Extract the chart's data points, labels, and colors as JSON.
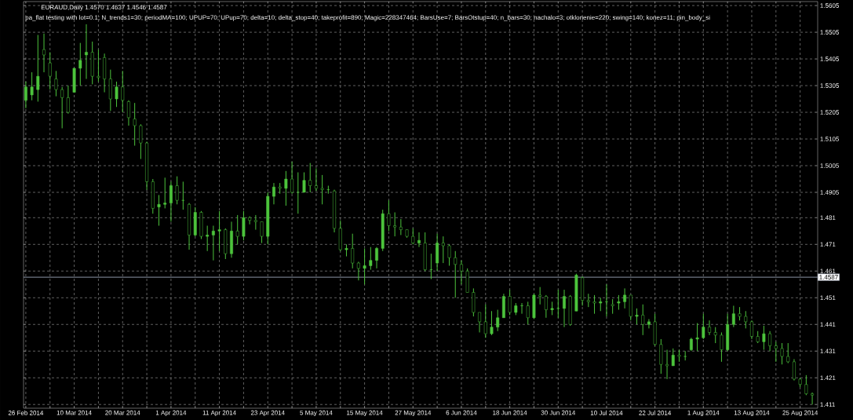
{
  "chart_data": {
    "type": "candlestick",
    "title": "EURAUD,Daily  1.4570 1.4637 1.4546 1.4587",
    "subtitle": "pa_flat testing with lot=0.1; N_trends1=30; periodMA=100; UPUP=70; UPup=70; delta=10; delta_stop=40; takeprofit=890; Magic=228347464; BarsUse=7; BarsOtstup=40; n_bars=30; nachalo=3; otklonenie=220; swing=140; konez=11; pin_body_si",
    "categories": [
      "26 Feb 2014",
      null,
      null,
      null,
      null,
      null,
      null,
      null,
      "10 Mar 2014",
      null,
      null,
      null,
      null,
      null,
      null,
      null,
      "20 Mar 2014",
      null,
      null,
      null,
      null,
      null,
      null,
      null,
      "1 Apr 2014",
      null,
      null,
      null,
      null,
      null,
      null,
      null,
      "11 Apr 2014",
      null,
      null,
      null,
      null,
      null,
      null,
      null,
      "23 Apr 2014",
      null,
      null,
      null,
      null,
      null,
      null,
      null,
      "5 May 2014",
      null,
      null,
      null,
      null,
      null,
      null,
      null,
      "15 May 2014",
      null,
      null,
      null,
      null,
      null,
      null,
      null,
      "27 May 2014",
      null,
      null,
      null,
      null,
      null,
      null,
      null,
      "6 Jun 2014",
      null,
      null,
      null,
      null,
      null,
      null,
      null,
      "18 Jun 2014",
      null,
      null,
      null,
      null,
      null,
      null,
      null,
      "30 Jun 2014",
      null,
      null,
      null,
      null,
      null,
      null,
      null,
      "10 Jul 2014",
      null,
      null,
      null,
      null,
      null,
      null,
      null,
      "22 Jul 2014",
      null,
      null,
      null,
      null,
      null,
      null,
      null,
      "1 Aug 2014",
      null,
      null,
      null,
      null,
      null,
      null,
      null,
      "13 Aug 2014",
      null,
      null,
      null,
      null,
      null,
      null,
      null,
      "25 Aug 2014",
      null,
      null
    ],
    "ohlc": [
      [
        1.525,
        1.532,
        1.522,
        1.53
      ],
      [
        1.527,
        1.5355,
        1.525,
        1.53
      ],
      [
        1.529,
        1.5495,
        1.5245,
        1.534
      ],
      [
        1.544,
        1.55,
        1.5355,
        1.542
      ],
      [
        1.539,
        1.543,
        1.529,
        1.534
      ],
      [
        1.533,
        1.536,
        1.5265,
        1.529
      ],
      [
        1.529,
        1.53,
        1.5145,
        1.526
      ],
      [
        1.526,
        1.5305,
        1.52,
        1.5205
      ],
      [
        1.528,
        1.537,
        1.528,
        1.537
      ],
      [
        1.537,
        1.5465,
        1.5305,
        1.54
      ],
      [
        1.542,
        1.5535,
        1.533,
        1.543
      ],
      [
        1.543,
        1.547,
        1.531,
        1.534
      ],
      [
        1.534,
        1.544,
        1.532,
        1.5335
      ],
      [
        1.541,
        1.5425,
        1.528,
        1.533
      ],
      [
        1.533,
        1.5365,
        1.521,
        1.5255
      ],
      [
        1.5255,
        1.532,
        1.5225,
        1.53
      ],
      [
        1.53,
        1.536,
        1.5205,
        1.525
      ],
      [
        1.5245,
        1.525,
        1.5155,
        1.5185
      ],
      [
        1.518,
        1.524,
        1.508,
        1.5155
      ],
      [
        1.5155,
        1.516,
        1.503,
        1.509
      ],
      [
        1.509,
        1.5095,
        1.4915,
        1.4945
      ],
      [
        1.4945,
        1.4955,
        1.4825,
        1.4845
      ],
      [
        1.485,
        1.4895,
        1.478,
        1.486
      ],
      [
        1.486,
        1.496,
        1.4845,
        1.4865
      ],
      [
        1.4865,
        1.4945,
        1.4795,
        1.493
      ],
      [
        1.493,
        1.4965,
        1.486,
        1.4875
      ],
      [
        1.4875,
        1.4945,
        1.484,
        1.4875
      ],
      [
        1.486,
        1.4865,
        1.469,
        1.4745
      ],
      [
        1.4745,
        1.485,
        1.474,
        1.483
      ],
      [
        1.483,
        1.4835,
        1.473,
        1.474
      ],
      [
        1.474,
        1.478,
        1.4685,
        1.4745
      ],
      [
        1.4745,
        1.478,
        1.465,
        1.476
      ],
      [
        1.476,
        1.4835,
        1.4685,
        1.4765
      ],
      [
        1.4765,
        1.477,
        1.4655,
        1.4675
      ],
      [
        1.4675,
        1.4795,
        1.466,
        1.476
      ],
      [
        1.476,
        1.482,
        1.471,
        1.474
      ],
      [
        1.474,
        1.4835,
        1.4725,
        1.481
      ],
      [
        1.481,
        1.4815,
        1.4785,
        1.48
      ],
      [
        1.48,
        1.482,
        1.4765,
        1.4795
      ],
      [
        1.4795,
        1.4795,
        1.4715,
        1.474
      ],
      [
        1.474,
        1.4905,
        1.471,
        1.489
      ],
      [
        1.489,
        1.494,
        1.486,
        1.4925
      ],
      [
        1.4925,
        1.494,
        1.49,
        1.492
      ],
      [
        1.492,
        1.4985,
        1.4855,
        1.4955
      ],
      [
        1.4955,
        1.502,
        1.49,
        1.4905
      ],
      [
        1.4905,
        1.498,
        1.4825,
        1.4905
      ],
      [
        1.4905,
        1.498,
        1.4905,
        1.495
      ],
      [
        1.495,
        1.5015,
        1.4905,
        1.493
      ],
      [
        1.493,
        1.4995,
        1.491,
        1.492
      ],
      [
        1.492,
        1.497,
        1.486,
        1.4915
      ],
      [
        1.4915,
        1.493,
        1.49,
        1.4915
      ],
      [
        1.491,
        1.4915,
        1.4755,
        1.477
      ],
      [
        1.477,
        1.48,
        1.4685,
        1.469
      ],
      [
        1.469,
        1.471,
        1.4665,
        1.4695
      ],
      [
        1.4695,
        1.475,
        1.462,
        1.464
      ],
      [
        1.464,
        1.4645,
        1.4575,
        1.462
      ],
      [
        1.462,
        1.4695,
        1.456,
        1.463
      ],
      [
        1.463,
        1.47,
        1.4615,
        1.465
      ],
      [
        1.465,
        1.47,
        1.462,
        1.4695
      ],
      [
        1.4695,
        1.484,
        1.4685,
        1.4825
      ],
      [
        1.4825,
        1.4875,
        1.476,
        1.478
      ],
      [
        1.478,
        1.483,
        1.474,
        1.4775
      ],
      [
        1.4775,
        1.4805,
        1.4745,
        1.4765
      ],
      [
        1.4765,
        1.4765,
        1.4735,
        1.474
      ],
      [
        1.474,
        1.477,
        1.471,
        1.4715
      ],
      [
        1.4715,
        1.4755,
        1.47,
        1.4725
      ],
      [
        1.4715,
        1.4755,
        1.461,
        1.4615
      ],
      [
        1.4615,
        1.4675,
        1.458,
        1.4615
      ],
      [
        1.464,
        1.475,
        1.461,
        1.4715
      ],
      [
        1.4715,
        1.474,
        1.464,
        1.4705
      ],
      [
        1.4705,
        1.471,
        1.463,
        1.466
      ],
      [
        1.466,
        1.4685,
        1.451,
        1.4635
      ],
      [
        1.4635,
        1.465,
        1.456,
        1.461
      ],
      [
        1.461,
        1.462,
        1.453,
        1.453
      ],
      [
        1.453,
        1.4545,
        1.444,
        1.4455
      ],
      [
        1.4455,
        1.4455,
        1.438,
        1.442
      ],
      [
        1.442,
        1.4485,
        1.436,
        1.4375
      ],
      [
        1.4375,
        1.446,
        1.437,
        1.44
      ],
      [
        1.44,
        1.4465,
        1.4385,
        1.4435
      ],
      [
        1.4435,
        1.4525,
        1.4435,
        1.4515
      ],
      [
        1.4515,
        1.454,
        1.4445,
        1.4455
      ],
      [
        1.4455,
        1.449,
        1.4445,
        1.448
      ],
      [
        1.448,
        1.449,
        1.445,
        1.448
      ],
      [
        1.448,
        1.4495,
        1.441,
        1.4435
      ],
      [
        1.4435,
        1.4525,
        1.443,
        1.452
      ],
      [
        1.452,
        1.455,
        1.4485,
        1.4515
      ],
      [
        1.4515,
        1.452,
        1.4435,
        1.4465
      ],
      [
        1.4465,
        1.4495,
        1.4445,
        1.447
      ],
      [
        1.447,
        1.454,
        1.4435,
        1.447
      ],
      [
        1.447,
        1.454,
        1.44,
        1.4515
      ],
      [
        1.4515,
        1.452,
        1.4405,
        1.441
      ],
      [
        1.446,
        1.46,
        1.446,
        1.4595
      ],
      [
        1.4585,
        1.459,
        1.448,
        1.45
      ],
      [
        1.45,
        1.4525,
        1.4475,
        1.4495
      ],
      [
        1.4495,
        1.452,
        1.445,
        1.449
      ],
      [
        1.449,
        1.451,
        1.446,
        1.4495
      ],
      [
        1.4495,
        1.456,
        1.444,
        1.4495
      ],
      [
        1.4485,
        1.4505,
        1.445,
        1.448
      ],
      [
        1.449,
        1.452,
        1.4465,
        1.4495
      ],
      [
        1.4495,
        1.4545,
        1.447,
        1.452
      ],
      [
        1.452,
        1.452,
        1.4425,
        1.444
      ],
      [
        1.444,
        1.447,
        1.441,
        1.4445
      ],
      [
        1.4445,
        1.4485,
        1.437,
        1.441
      ],
      [
        1.441,
        1.443,
        1.4395,
        1.442
      ],
      [
        1.442,
        1.445,
        1.433,
        1.4335
      ],
      [
        1.4335,
        1.4355,
        1.4225,
        1.426
      ],
      [
        1.426,
        1.4315,
        1.4205,
        1.4255
      ],
      [
        1.4255,
        1.432,
        1.4255,
        1.4295
      ],
      [
        1.4295,
        1.4315,
        1.427,
        1.429
      ],
      [
        1.429,
        1.431,
        1.4275,
        1.429
      ],
      [
        1.4315,
        1.436,
        1.431,
        1.4355
      ],
      [
        1.4355,
        1.4415,
        1.431,
        1.436
      ],
      [
        1.436,
        1.445,
        1.4355,
        1.44
      ],
      [
        1.44,
        1.4425,
        1.437,
        1.438
      ],
      [
        1.438,
        1.44,
        1.434,
        1.437
      ],
      [
        1.437,
        1.438,
        1.427,
        1.4315
      ],
      [
        1.4315,
        1.445,
        1.431,
        1.441
      ],
      [
        1.441,
        1.448,
        1.44,
        1.445
      ],
      [
        1.445,
        1.4475,
        1.4425,
        1.444
      ],
      [
        1.444,
        1.446,
        1.4395,
        1.442
      ],
      [
        1.442,
        1.4425,
        1.4355,
        1.4365
      ],
      [
        1.4365,
        1.4385,
        1.434,
        1.4345
      ],
      [
        1.4345,
        1.4405,
        1.4315,
        1.4375
      ],
      [
        1.4375,
        1.4385,
        1.431,
        1.433
      ],
      [
        1.433,
        1.4345,
        1.427,
        1.432
      ],
      [
        1.432,
        1.434,
        1.426,
        1.429
      ],
      [
        1.429,
        1.434,
        1.4265,
        1.427
      ],
      [
        1.427,
        1.428,
        1.42,
        1.4205
      ],
      [
        1.4205,
        1.421,
        1.4175,
        1.4185
      ],
      [
        1.4185,
        1.422,
        1.4145,
        1.415
      ],
      [
        1.415,
        1.4155,
        1.411,
        1.4145
      ]
    ],
    "color": "#4cc43c",
    "ylim": [
      1.4096,
      1.562
    ],
    "yticks": [
      1.411,
      1.421,
      1.431,
      1.441,
      1.451,
      1.461,
      1.471,
      1.481,
      1.4905,
      1.5005,
      1.5105,
      1.5205,
      1.5305,
      1.5405,
      1.5505,
      1.5605
    ],
    "grid": true,
    "ref_lines": [
      {
        "axis": "y",
        "value": 1.4587,
        "label": "1.4587",
        "color": "#8c96a8"
      }
    ]
  }
}
